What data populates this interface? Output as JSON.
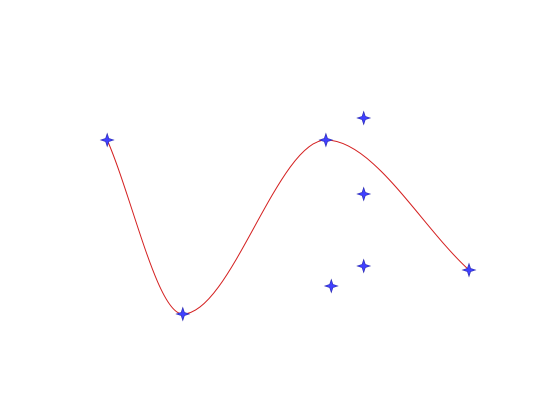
{
  "chart_data": {
    "type": "scatter",
    "axes_visible": false,
    "grid": false,
    "xlim": [
      0,
      10
    ],
    "ylim": [
      0,
      10
    ],
    "line_color": "#d42020",
    "marker_color": "#4040ff",
    "marker_shape": "four-point-star",
    "series": [
      {
        "kind": "smooth-curve",
        "points": [
          {
            "x": 1.8,
            "y": 6.75
          },
          {
            "x": 3.2,
            "y": 2.4
          },
          {
            "x": 5.85,
            "y": 6.75
          },
          {
            "x": 8.5,
            "y": 3.5
          }
        ]
      },
      {
        "kind": "markers",
        "points": [
          {
            "x": 1.8,
            "y": 6.75
          },
          {
            "x": 3.2,
            "y": 2.4
          },
          {
            "x": 5.85,
            "y": 6.75
          },
          {
            "x": 8.5,
            "y": 3.5
          },
          {
            "x": 6.55,
            "y": 7.3
          },
          {
            "x": 6.55,
            "y": 5.4
          },
          {
            "x": 6.55,
            "y": 3.6
          },
          {
            "x": 5.95,
            "y": 3.1
          }
        ]
      }
    ]
  }
}
